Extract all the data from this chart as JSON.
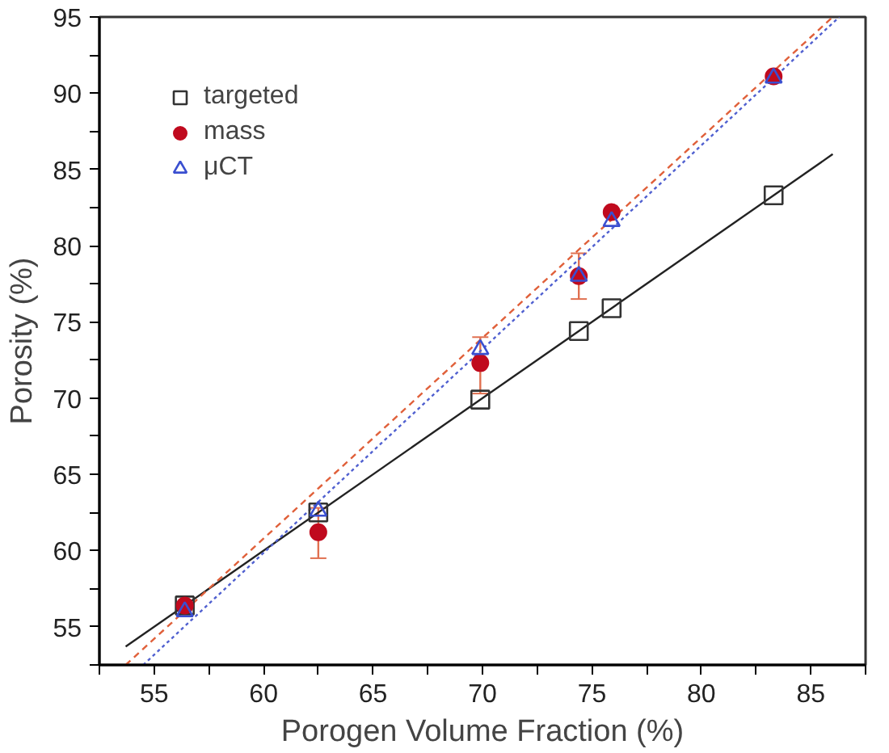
{
  "chart_data": {
    "type": "scatter",
    "xlabel": "Porogen Volume Fraction (%)",
    "ylabel": "Porosity (%)",
    "xlim": [
      52.5,
      87.5
    ],
    "ylim": [
      52.5,
      95
    ],
    "xticks": [
      {
        "value": 52.5,
        "label": null
      },
      55,
      {
        "value": 57.5,
        "label": null
      },
      60,
      {
        "value": 62.5,
        "label": null
      },
      65,
      {
        "value": 67.5,
        "label": null
      },
      70,
      {
        "value": 72.5,
        "label": null
      },
      75,
      {
        "value": 77.5,
        "label": null
      },
      80,
      {
        "value": 82.5,
        "label": null
      },
      85,
      {
        "value": 87.5,
        "label": null
      }
    ],
    "yticks": [
      {
        "value": 52.5,
        "label": null
      },
      55,
      {
        "value": 57.5,
        "label": null
      },
      60,
      {
        "value": 62.5,
        "label": null
      },
      65,
      {
        "value": 67.5,
        "label": null
      },
      70,
      {
        "value": 72.5,
        "label": null
      },
      75,
      {
        "value": 77.5,
        "label": null
      },
      80,
      {
        "value": 82.5,
        "label": null
      },
      85,
      {
        "value": 87.5,
        "label": null
      },
      90,
      {
        "value": 92.5,
        "label": null
      },
      95
    ],
    "grid": false,
    "legend": "top left",
    "x": [
      56.4,
      62.5,
      69.9,
      74.4,
      75.9,
      83.3
    ],
    "series": [
      {
        "type": "line",
        "color": "#222222",
        "line_style": "solid",
        "marker": "none",
        "x": [
          53.7,
          86
        ],
        "values": [
          53.7,
          86
        ]
      },
      {
        "type": "line",
        "color": "#e0603a",
        "line_style": "dashed",
        "marker": "none",
        "x": [
          53.7,
          86
        ],
        "values": [
          52.5,
          95
        ]
      },
      {
        "type": "line",
        "color": "#5060d0",
        "line_style": "dotted",
        "marker": "none",
        "x": [
          54.5,
          86.3
        ],
        "values": [
          52.5,
          95
        ]
      },
      {
        "name": "targeted",
        "color": "#333333",
        "marker": "square",
        "values": [
          56.4,
          62.5,
          69.9,
          74.4,
          75.9,
          83.3
        ]
      },
      {
        "name": "mass",
        "color": "#c00a1e",
        "marker": "circle",
        "values": [
          56.4,
          61.2,
          72.3,
          78.0,
          82.2,
          91.1
        ],
        "errors": [
          null,
          [
            59.5,
            62.8
          ],
          [
            70.3,
            74.0
          ],
          [
            76.5,
            79.5
          ],
          null,
          null
        ]
      },
      {
        "name": "μCT",
        "color": "#3a4fd0",
        "marker": "triangle",
        "values": [
          56.0,
          62.6,
          73.2,
          78.0,
          81.6,
          91.0
        ]
      }
    ]
  }
}
